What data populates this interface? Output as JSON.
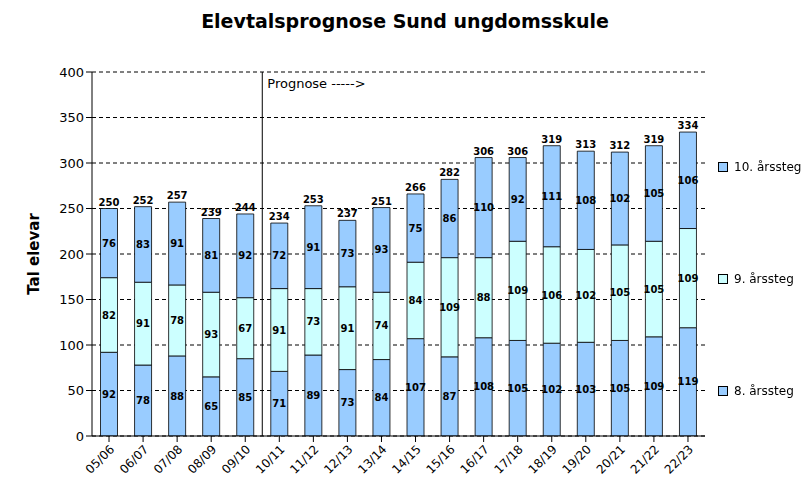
{
  "chart_data": {
    "type": "bar",
    "title": "Elevtalsprognose  Sund ungdomsskule",
    "y_label": "Tal elevar",
    "categories": [
      "05/06",
      "06/07",
      "07/08",
      "08/09",
      "09/10",
      "10/11",
      "11/12",
      "12/13",
      "13/14",
      "14/15",
      "15/16",
      "16/17",
      "17/18",
      "18/19",
      "19/20",
      "20/21",
      "21/22",
      "22/23"
    ],
    "series": [
      {
        "name": "8. årssteg",
        "color": "#99ccff",
        "values": [
          92,
          78,
          88,
          65,
          85,
          71,
          89,
          73,
          84,
          107,
          87,
          108,
          105,
          102,
          103,
          105,
          109,
          119
        ]
      },
      {
        "name": "9. årssteg",
        "color": "#ccffff",
        "values": [
          82,
          91,
          78,
          93,
          67,
          91,
          73,
          91,
          74,
          84,
          109,
          88,
          109,
          106,
          102,
          105,
          105,
          109
        ]
      },
      {
        "name": "10. årssteg",
        "color": "#99ccff",
        "values": [
          76,
          83,
          91,
          81,
          92,
          72,
          91,
          73,
          93,
          75,
          86,
          110,
          92,
          111,
          108,
          102,
          105,
          106
        ]
      }
    ],
    "totals": [
      250,
      252,
      257,
      239,
      244,
      234,
      253,
      237,
      251,
      266,
      282,
      306,
      306,
      319,
      313,
      312,
      319,
      334
    ],
    "annotations": [
      {
        "text": "Prognose ----->",
        "x": "10/11"
      }
    ],
    "ylim": [
      0,
      400
    ],
    "yticks": [
      0,
      50,
      100,
      150,
      200,
      250,
      300,
      350,
      400
    ],
    "grid": true,
    "stacked": true,
    "data_labels": true,
    "legend": "right"
  }
}
